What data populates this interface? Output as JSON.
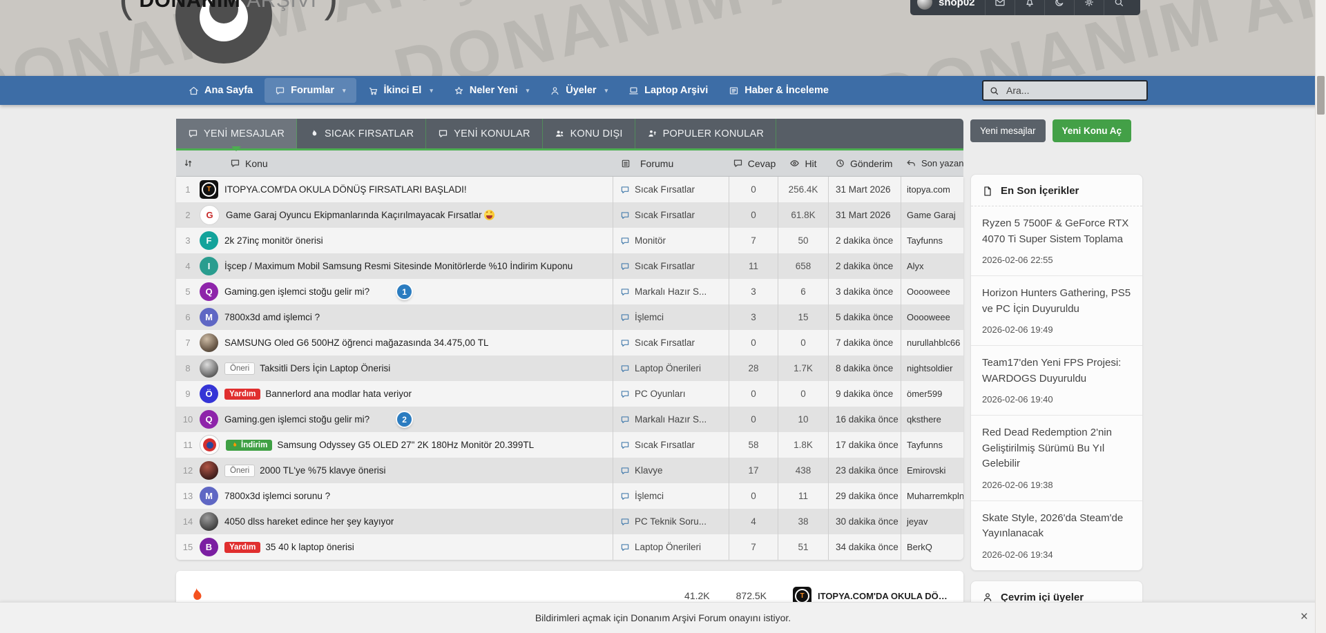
{
  "header": {
    "logo": {
      "line_black": "DONANIM",
      "line_gray": "ARŞİVİ",
      "paren_left": "(",
      "paren_right": ")"
    },
    "watermark": "DONANIM ARŞİVİ",
    "user": {
      "name": "shop02"
    },
    "user_icons": [
      "envelope-icon",
      "bell-icon",
      "moon-icon",
      "gear-icon",
      "search-icon"
    ]
  },
  "nav": {
    "items": [
      {
        "label": "Ana Sayfa",
        "icon": "home",
        "caret": false,
        "active": false
      },
      {
        "label": "Forumlar",
        "icon": "chat",
        "caret": true,
        "active": true
      },
      {
        "label": "İkinci El",
        "icon": "cart",
        "caret": true,
        "active": false
      },
      {
        "label": "Neler Yeni",
        "icon": "star",
        "caret": true,
        "active": false
      },
      {
        "label": "Üyeler",
        "icon": "user",
        "caret": true,
        "active": false
      },
      {
        "label": "Laptop Arşivi",
        "icon": "laptop",
        "caret": false,
        "active": false
      },
      {
        "label": "Haber & İnceleme",
        "icon": "news",
        "caret": false,
        "active": false
      }
    ],
    "search_placeholder": "Ara..."
  },
  "tabs": [
    {
      "label": "YENİ MESAJLAR",
      "icon": "chat",
      "active": true
    },
    {
      "label": "SICAK FIRSATLAR",
      "icon": "flame",
      "active": false
    },
    {
      "label": "YENİ KONULAR",
      "icon": "chat",
      "active": false
    },
    {
      "label": "KONU DIŞI",
      "icon": "users",
      "active": false
    },
    {
      "label": "POPULER KONULAR",
      "icon": "trending",
      "active": false
    }
  ],
  "table": {
    "headers": {
      "konu": "Konu",
      "forumu": "Forumu",
      "cevap": "Cevap",
      "hit": "Hit",
      "gonderim": "Gönderim",
      "son_yazan": "Son yazan"
    },
    "rows": [
      {
        "num": "1",
        "avatar": {
          "kind": "itopya",
          "label": "T"
        },
        "badges": [],
        "title": "ITOPYA.COM'DA OKULA DÖNÜŞ FIRSATLARI BAŞLADI!",
        "forum": "Sıcak Fırsatlar",
        "cevap": "0",
        "hit": "256.4K",
        "gonderim": "31 Mart 2026",
        "son_yazan": "itopya.com"
      },
      {
        "num": "2",
        "avatar": {
          "kind": "gamegaraj",
          "label": "G"
        },
        "badges": [],
        "title": "Game Garaj Oyuncu Ekipmanlarında Kaçırılmayacak Fırsatlar",
        "emoji": "starstruck-emoji",
        "forum": "Sıcak Fırsatlar",
        "cevap": "0",
        "hit": "61.8K",
        "gonderim": "31 Mart 2026",
        "son_yazan": "Game Garaj"
      },
      {
        "num": "3",
        "avatar": {
          "kind": "letter",
          "label": "F",
          "color": "#13a39b"
        },
        "badges": [],
        "title": "2k 27inç monitör önerisi",
        "forum": "Monitör",
        "cevap": "7",
        "hit": "50",
        "gonderim": "2 dakika önce",
        "son_yazan": "Tayfunns"
      },
      {
        "num": "4",
        "avatar": {
          "kind": "letter",
          "label": "I",
          "color": "#2a9d8f"
        },
        "badges": [],
        "title": "İşcep / Maximum Mobil Samsung Resmi Sitesinde Monitörlerde %10 İndirim Kuponu",
        "forum": "Sıcak Fırsatlar",
        "cevap": "11",
        "hit": "658",
        "gonderim": "2 dakika önce",
        "son_yazan": "Alyx"
      },
      {
        "num": "5",
        "avatar": {
          "kind": "letter",
          "label": "Q",
          "color": "#8e24aa"
        },
        "badges": [],
        "title": "Gaming.gen işlemci stoğu gelir mi?",
        "marker": "1",
        "forum": "Markalı Hazır S...",
        "cevap": "3",
        "hit": "6",
        "gonderim": "3 dakika önce",
        "son_yazan": "Ooooweee"
      },
      {
        "num": "6",
        "avatar": {
          "kind": "letter",
          "label": "M",
          "color": "#5f67c4"
        },
        "badges": [],
        "title": "7800x3d amd işlemci ?",
        "forum": "İşlemci",
        "cevap": "3",
        "hit": "15",
        "gonderim": "5 dakika önce",
        "son_yazan": "Ooooweee"
      },
      {
        "num": "7",
        "avatar": {
          "kind": "photo",
          "variant": "p1"
        },
        "badges": [],
        "title": "SAMSUNG Oled G6 500HZ öğrenci mağazasında 34.475,00 TL",
        "forum": "Sıcak Fırsatlar",
        "cevap": "0",
        "hit": "0",
        "gonderim": "7 dakika önce",
        "son_yazan": "nurullahblc66"
      },
      {
        "num": "8",
        "avatar": {
          "kind": "photo",
          "variant": "p2"
        },
        "badges": [
          {
            "text": "Öneri",
            "style": "oneri"
          }
        ],
        "title": "Taksitli Ders İçin Laptop Önerisi",
        "forum": "Laptop Önerileri",
        "cevap": "28",
        "hit": "1.7K",
        "gonderim": "8 dakika önce",
        "son_yazan": "nightsoldier"
      },
      {
        "num": "9",
        "avatar": {
          "kind": "letter",
          "label": "Ö",
          "color": "#3434d6"
        },
        "badges": [
          {
            "text": "Yardım",
            "style": "yardim"
          }
        ],
        "title": "Bannerlord ana modlar hata veriyor",
        "forum": "PC Oyunları",
        "cevap": "0",
        "hit": "0",
        "gonderim": "9 dakika önce",
        "son_yazan": "ömer599"
      },
      {
        "num": "10",
        "avatar": {
          "kind": "letter",
          "label": "Q",
          "color": "#8e24aa"
        },
        "badges": [],
        "title": "Gaming.gen işlemci stoğu gelir mi?",
        "marker": "2",
        "forum": "Markalı Hazır S...",
        "cevap": "0",
        "hit": "10",
        "gonderim": "16 dakika önce",
        "son_yazan": "qksthere"
      },
      {
        "num": "11",
        "avatar": {
          "kind": "bayern"
        },
        "badges": [
          {
            "text": "İndirim",
            "style": "indirim"
          }
        ],
        "title": "Samsung Odyssey G5 OLED 27\" 2K 180Hz Monitör 20.399TL",
        "forum": "Sıcak Fırsatlar",
        "cevap": "58",
        "hit": "1.8K",
        "gonderim": "17 dakika önce",
        "son_yazan": "Tayfunns"
      },
      {
        "num": "12",
        "avatar": {
          "kind": "photo",
          "variant": "p3"
        },
        "badges": [
          {
            "text": "Öneri",
            "style": "oneri"
          }
        ],
        "title": "2000 TL'ye %75 klavye önerisi",
        "forum": "Klavye",
        "cevap": "17",
        "hit": "438",
        "gonderim": "23 dakika önce",
        "son_yazan": "Emirovski"
      },
      {
        "num": "13",
        "avatar": {
          "kind": "letter",
          "label": "M",
          "color": "#5f67c4"
        },
        "badges": [],
        "title": "7800x3d işlemci sorunu ?",
        "forum": "İşlemci",
        "cevap": "0",
        "hit": "11",
        "gonderim": "29 dakika önce",
        "son_yazan": "Muharremkpln"
      },
      {
        "num": "14",
        "avatar": {
          "kind": "photo",
          "variant": "p4"
        },
        "badges": [],
        "title": "4050 dlss hareket edince her şey kayıyor",
        "forum": "PC Teknik Soru...",
        "cevap": "4",
        "hit": "38",
        "gonderim": "30 dakika önce",
        "son_yazan": "jeyav"
      },
      {
        "num": "15",
        "avatar": {
          "kind": "letter",
          "label": "B",
          "color": "#7b1fa2"
        },
        "badges": [
          {
            "text": "Yardım",
            "style": "yardim"
          }
        ],
        "title": "35 40 k laptop önerisi",
        "forum": "Laptop Önerileri",
        "cevap": "7",
        "hit": "51",
        "gonderim": "34 dakika önce",
        "son_yazan": "BerkQ"
      }
    ]
  },
  "stats": {
    "replies": "41.2K",
    "views": "872.5K",
    "latest_title": "ITOPYA.COM'DA OKULA DÖNÜŞ FI..."
  },
  "sidebar": {
    "buttons": [
      {
        "label": "Yeni mesajlar",
        "style": "slate"
      },
      {
        "label": "Yeni Konu Aç",
        "style": "green"
      }
    ],
    "latest": {
      "title": "En Son İçerikler",
      "items": [
        {
          "title": "Ryzen 5 7500F & GeForce RTX 4070 Ti Super Sistem Toplama",
          "date": "2026-02-06 22:55"
        },
        {
          "title": "Horizon Hunters Gathering, PS5 ve PC İçin Duyuruldu",
          "date": "2026-02-06 19:49"
        },
        {
          "title": "Team17'den Yeni FPS Projesi: WARDOGS Duyuruldu",
          "date": "2026-02-06 19:40"
        },
        {
          "title": "Red Dead Redemption 2'nin Geliştirilmiş Sürümü Bu Yıl Gelebilir",
          "date": "2026-02-06 19:38"
        },
        {
          "title": "Skate Style, 2026'da Steam'de Yayınlanacak",
          "date": "2026-02-06 19:34"
        }
      ]
    },
    "online": {
      "title": "Çevrim içi üyeler"
    }
  },
  "notification": {
    "text": "Bildirimleri açmak için Donanım Arşivi Forum onayını istiyor.",
    "close": "×"
  },
  "colors": {
    "accent_green": "#4caf50",
    "nav_blue": "#3d6da6",
    "tab_dark": "#575e66",
    "marker_blue": "#2b7cc0",
    "badge_red": "#e02f2f",
    "badge_green": "#3fa044"
  }
}
